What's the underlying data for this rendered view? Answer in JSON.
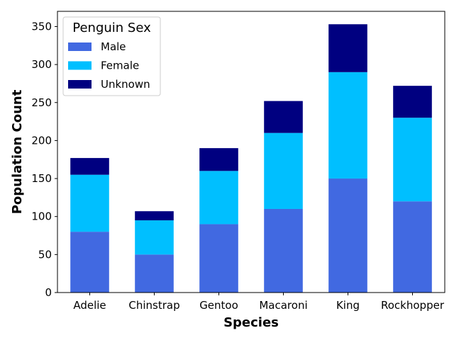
{
  "chart_data": {
    "type": "bar",
    "stacked": true,
    "categories": [
      "Adelie",
      "Chinstrap",
      "Gentoo",
      "Macaroni",
      "King",
      "Rockhopper"
    ],
    "series": [
      {
        "name": "Male",
        "values": [
          80,
          50,
          90,
          110,
          150,
          120
        ],
        "color": "#4169e1"
      },
      {
        "name": "Female",
        "values": [
          75,
          45,
          70,
          100,
          140,
          110
        ],
        "color": "#00bfff"
      },
      {
        "name": "Unknown",
        "values": [
          22,
          12,
          30,
          42,
          63,
          42
        ],
        "color": "#000080"
      }
    ],
    "xlabel": "Species",
    "ylabel": "Population Count",
    "ylim": [
      0,
      370
    ],
    "yticks": [
      0,
      50,
      100,
      150,
      200,
      250,
      300,
      350
    ],
    "grid": false,
    "legend": {
      "title": "Penguin Sex",
      "position": "top-left"
    }
  }
}
